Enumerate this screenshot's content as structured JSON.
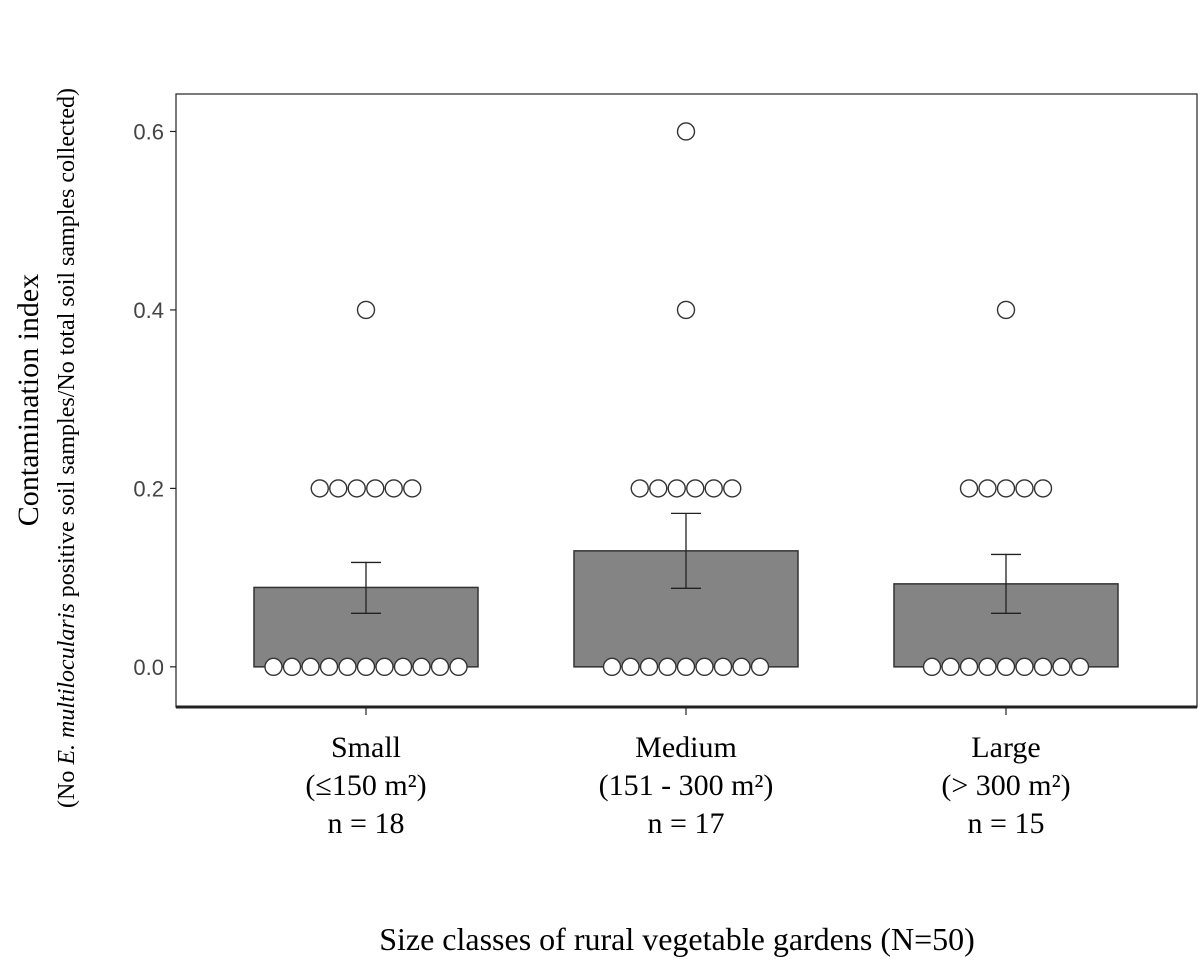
{
  "chart_data": {
    "type": "bar",
    "xlabel": "Size classes of rural vegetable gardens (N=50)",
    "ylabel": {
      "line1": "Contamination index",
      "line2_prefix": "(No ",
      "line2_italic": "E. multilocularis",
      "line2_suffix": " positive soil samples/No total soil samples collected)"
    },
    "ylim": [
      -0.045,
      0.642
    ],
    "yticks": [
      0.0,
      0.2,
      0.4,
      0.6
    ],
    "ytick_labels": [
      "0.0",
      "0.2",
      "0.4",
      "0.6"
    ],
    "grid": false,
    "categories": [
      {
        "label": "Small",
        "range": "(≤150 m²)",
        "n": "n = 18"
      },
      {
        "label": "Medium",
        "range": "(151 - 300 m²)",
        "n": "n = 17"
      },
      {
        "label": "Large",
        "range": "(> 300 m²)",
        "n": "n = 15"
      }
    ],
    "values": [
      0.089,
      0.13,
      0.093
    ],
    "error_low": [
      0.06,
      0.088,
      0.06
    ],
    "error_high": [
      0.117,
      0.172,
      0.126
    ],
    "points": [
      {
        "category": "Small",
        "value": 0.0,
        "count": 11
      },
      {
        "category": "Small",
        "value": 0.2,
        "count": 6
      },
      {
        "category": "Small",
        "value": 0.4,
        "count": 1
      },
      {
        "category": "Medium",
        "value": 0.0,
        "count": 9
      },
      {
        "category": "Medium",
        "value": 0.2,
        "count": 6
      },
      {
        "category": "Medium",
        "value": 0.4,
        "count": 1
      },
      {
        "category": "Medium",
        "value": 0.6,
        "count": 1
      },
      {
        "category": "Large",
        "value": 0.0,
        "count": 9
      },
      {
        "category": "Large",
        "value": 0.2,
        "count": 5
      },
      {
        "category": "Large",
        "value": 0.4,
        "count": 1
      }
    ],
    "colors": {
      "bar": "#848484",
      "bar_edge": "#333333",
      "point_fill": "#ffffff",
      "point_edge": "#333333",
      "frame": "#222222"
    }
  }
}
